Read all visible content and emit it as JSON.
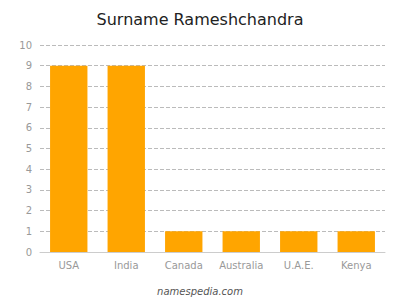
{
  "chart_data": {
    "type": "bar",
    "title": "Surname Rameshchandra",
    "categories": [
      "USA",
      "India",
      "Canada",
      "Australia",
      "U.A.E.",
      "Kenya"
    ],
    "values": [
      9,
      9,
      1,
      1,
      1,
      1
    ],
    "color": "#FFA500",
    "ylim": [
      0,
      10
    ],
    "yticks": [
      0,
      1,
      2,
      3,
      4,
      5,
      6,
      7,
      8,
      9,
      10
    ],
    "grid": true,
    "annotations": [
      "namespedia.com"
    ]
  }
}
